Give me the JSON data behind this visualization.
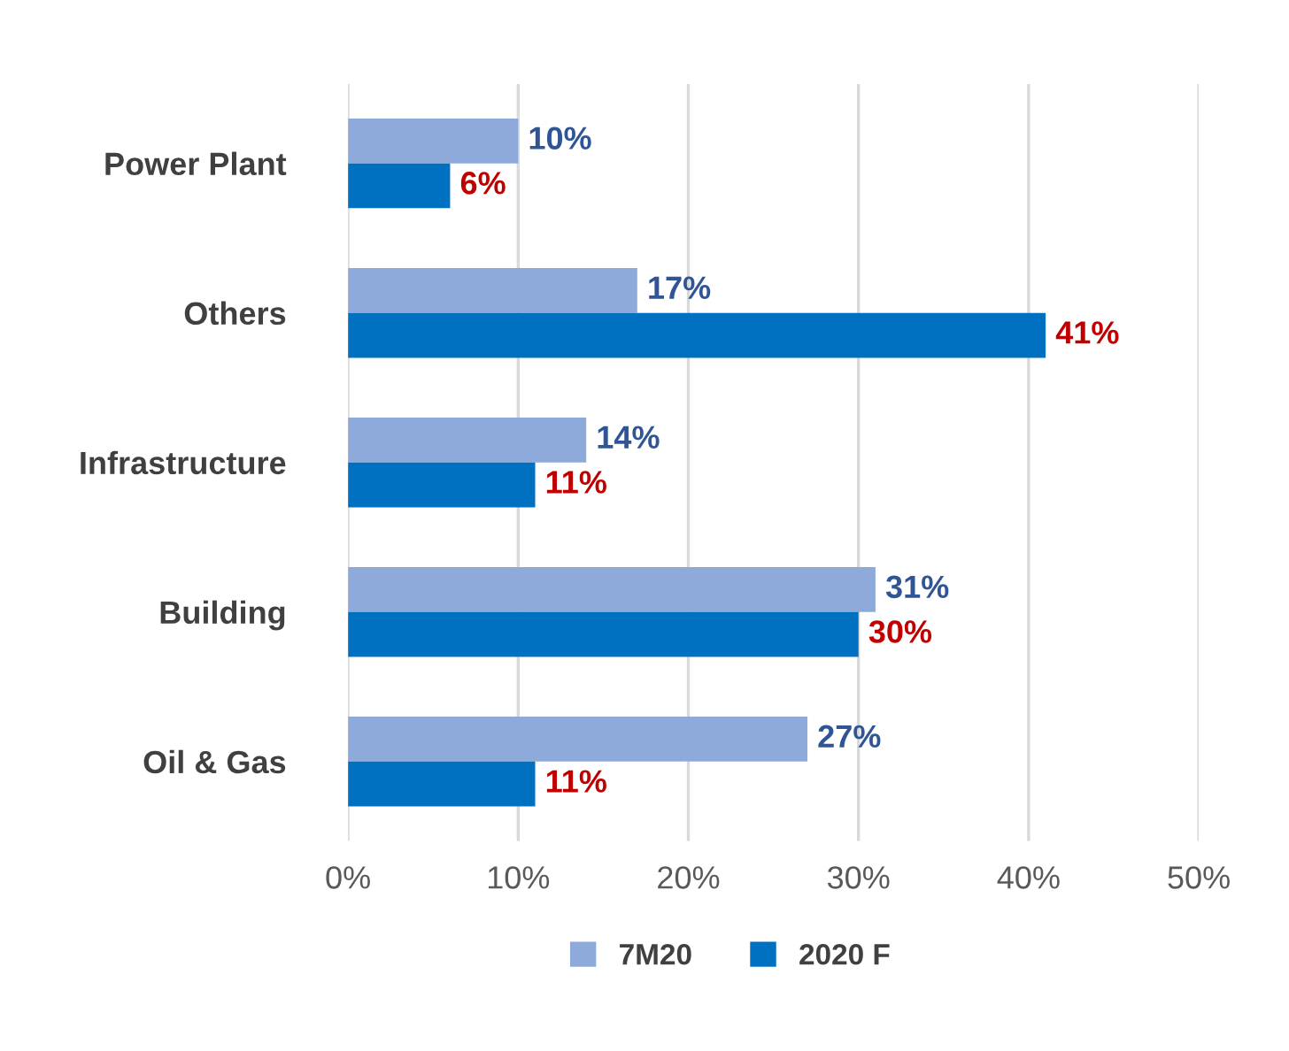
{
  "chart_data": {
    "type": "bar",
    "orientation": "horizontal",
    "categories": [
      "Power Plant",
      "Others",
      "Infrastructure",
      "Building",
      "Oil & Gas"
    ],
    "series": [
      {
        "name": "7M20",
        "color": "#8eaadb",
        "values": [
          10,
          17,
          14,
          31,
          27
        ],
        "value_labels": [
          "10%",
          "17%",
          "14%",
          "31%",
          "27%"
        ]
      },
      {
        "name": "2020 F",
        "color": "#0070c0",
        "values": [
          6,
          41,
          11,
          30,
          11
        ],
        "value_labels": [
          "6%",
          "41%",
          "11%",
          "30%",
          "11%"
        ]
      }
    ],
    "xlim": [
      0,
      50
    ],
    "xticks": [
      {
        "value": 0,
        "label": "0%"
      },
      {
        "value": 10,
        "label": "10%"
      },
      {
        "value": 20,
        "label": "20%"
      },
      {
        "value": 30,
        "label": "30%"
      },
      {
        "value": 40,
        "label": "40%"
      },
      {
        "value": 50,
        "label": "50%"
      }
    ],
    "grid": "x",
    "legend": "bottom"
  }
}
